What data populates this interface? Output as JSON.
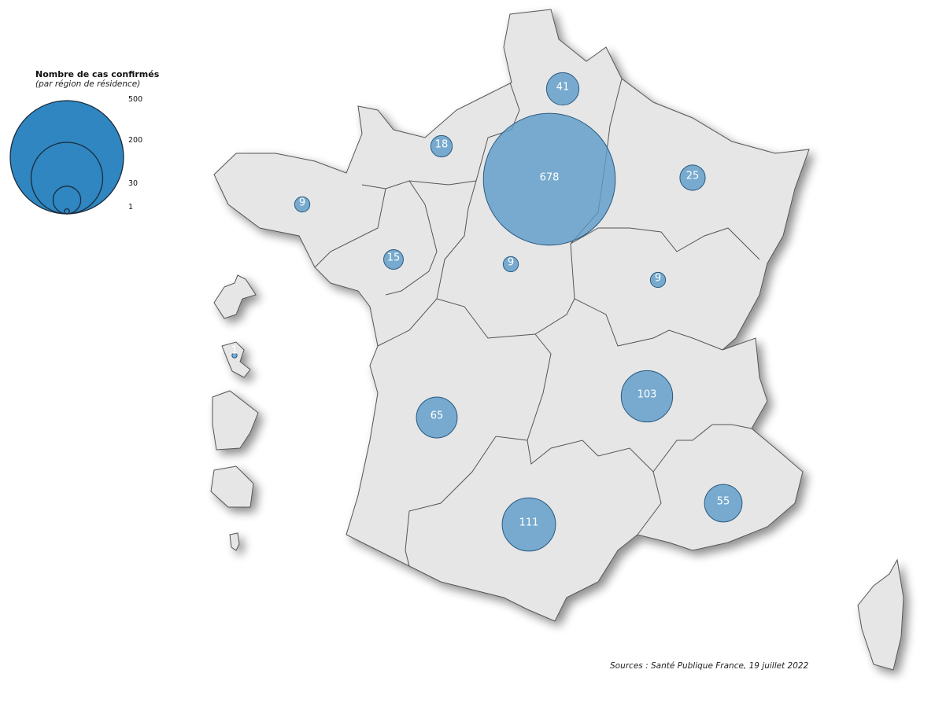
{
  "legend": {
    "title": "Nombre de cas confirmés",
    "subtitle": "(par région de résidence)",
    "scale_values": [
      "500",
      "200",
      "30",
      "1"
    ]
  },
  "source": "Sources : Santé Publique France, 19 juillet 2022",
  "colors": {
    "bubble": "#5b9bc8",
    "legend_fill": "#2f86c0",
    "land": "#e6e6e6",
    "border": "#444444"
  },
  "bubbles": [
    {
      "value": "41"
    },
    {
      "value": "18"
    },
    {
      "value": "678"
    },
    {
      "value": "25"
    },
    {
      "value": "9"
    },
    {
      "value": "15"
    },
    {
      "value": "9"
    },
    {
      "value": "9"
    },
    {
      "value": "103"
    },
    {
      "value": "65"
    },
    {
      "value": "111"
    },
    {
      "value": "55"
    },
    {
      "value": "1"
    }
  ]
}
